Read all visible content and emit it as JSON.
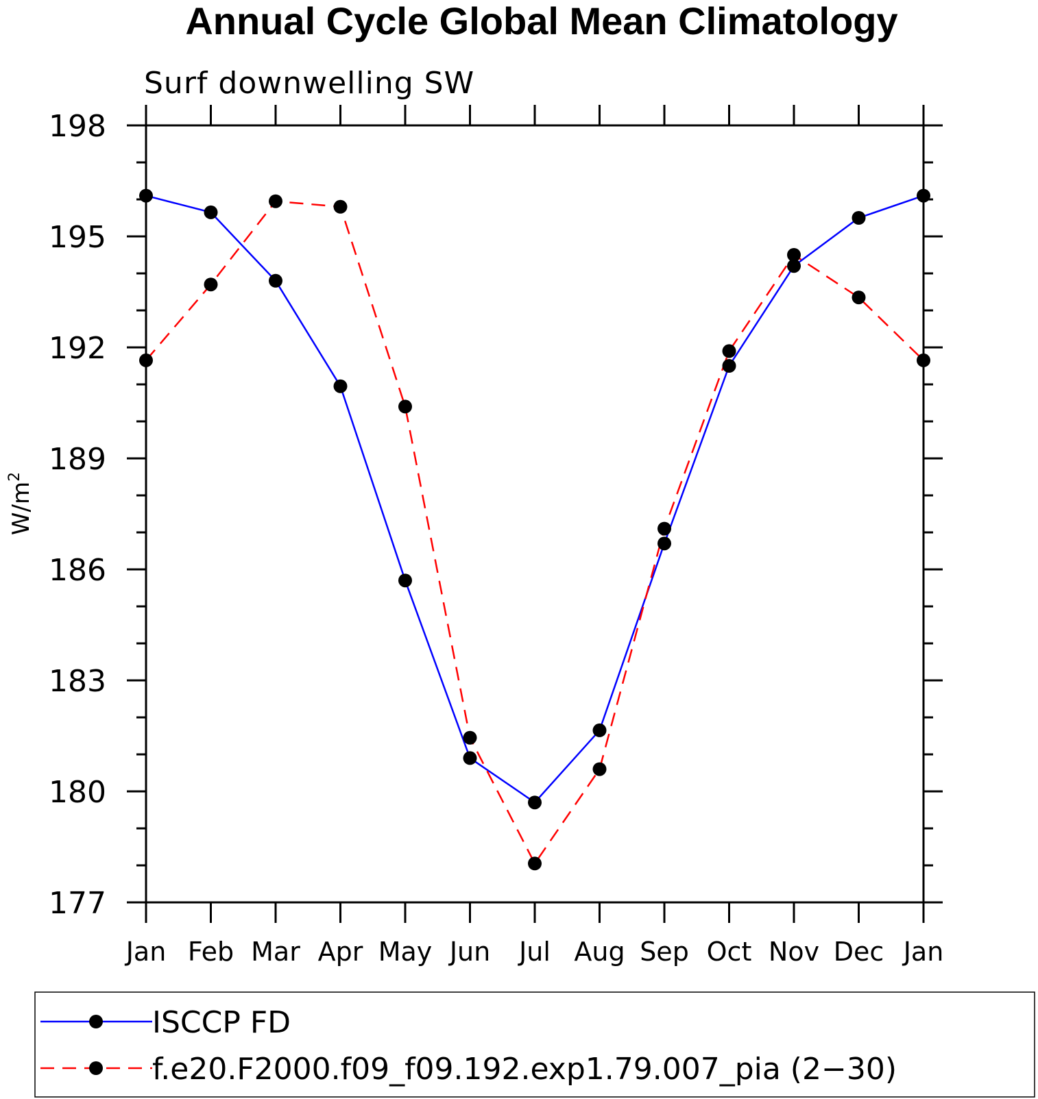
{
  "chart_data": {
    "type": "line",
    "title": "Annual Cycle Global Mean Climatology",
    "subtitle": "Surf downwelling SW",
    "ylabel": "W/m",
    "ylabel_superscript": "2",
    "xlabel": "",
    "categories": [
      "Jan",
      "Feb",
      "Mar",
      "Apr",
      "May",
      "Jun",
      "Jul",
      "Aug",
      "Sep",
      "Oct",
      "Nov",
      "Dec",
      "Jan"
    ],
    "ylim": [
      177,
      198
    ],
    "yticks": [
      "198",
      "195",
      "192",
      "189",
      "186",
      "183",
      "180",
      "177"
    ],
    "grid": false,
    "legend_position": "bottom",
    "series": [
      {
        "name": "ISCCP FD",
        "color": "#0000ff",
        "dash": "solid",
        "values": [
          196.1,
          195.65,
          193.8,
          190.95,
          185.7,
          180.9,
          179.7,
          181.65,
          186.7,
          191.5,
          194.2,
          195.5,
          196.1
        ]
      },
      {
        "name": "f.e20.F2000.f09_f09.192.exp1.79.007_pia (2−30)",
        "color": "#ff0000",
        "dash": "dashed",
        "values": [
          191.65,
          193.7,
          195.95,
          195.8,
          190.4,
          181.45,
          178.05,
          180.6,
          187.1,
          191.9,
          194.5,
          193.35,
          191.65
        ]
      }
    ]
  }
}
